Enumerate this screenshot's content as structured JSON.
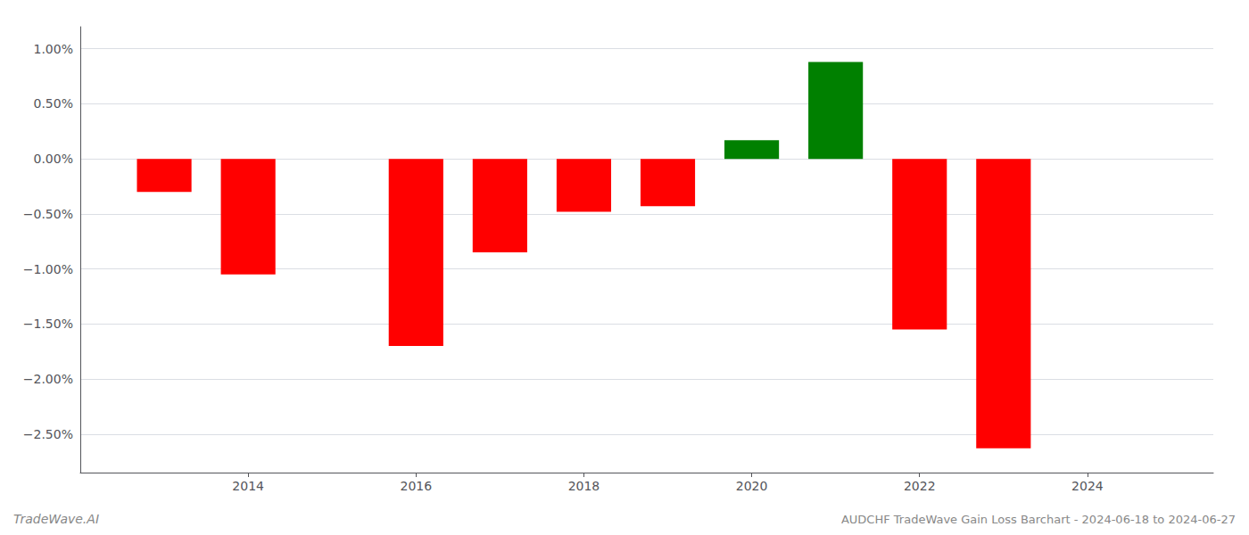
{
  "chart_data": {
    "type": "bar",
    "title": "AUDCHF TradeWave Gain Loss Barchart - 2024-06-18 to 2024-06-27",
    "annotations": [
      "TradeWave.AI"
    ],
    "x": [
      2013,
      2014,
      2016,
      2017,
      2018,
      2019,
      2020,
      2021,
      2022,
      2023
    ],
    "values": [
      -0.003,
      -0.0105,
      -0.017,
      -0.0085,
      -0.0048,
      -0.0043,
      0.0017,
      0.0088,
      -0.0155,
      -0.0263
    ],
    "colors": [
      "#ff0000",
      "#ff0000",
      "#ff0000",
      "#ff0000",
      "#ff0000",
      "#ff0000",
      "#008000",
      "#008000",
      "#ff0000",
      "#ff0000"
    ],
    "xlim": [
      2012.0,
      2025.5
    ],
    "xticks": [
      2014,
      2016,
      2018,
      2020,
      2022,
      2024
    ],
    "ylim": [
      -0.0285,
      0.012
    ],
    "yticks": [
      {
        "value": -0.025,
        "label": "−2.50%"
      },
      {
        "value": -0.02,
        "label": "−2.00%"
      },
      {
        "value": -0.015,
        "label": "−1.50%"
      },
      {
        "value": -0.01,
        "label": "−1.00%"
      },
      {
        "value": -0.005,
        "label": "−0.50%"
      },
      {
        "value": 0.0,
        "label": "0.00%"
      },
      {
        "value": 0.005,
        "label": "0.50%"
      },
      {
        "value": 0.01,
        "label": "1.00%"
      }
    ],
    "grid": true
  }
}
